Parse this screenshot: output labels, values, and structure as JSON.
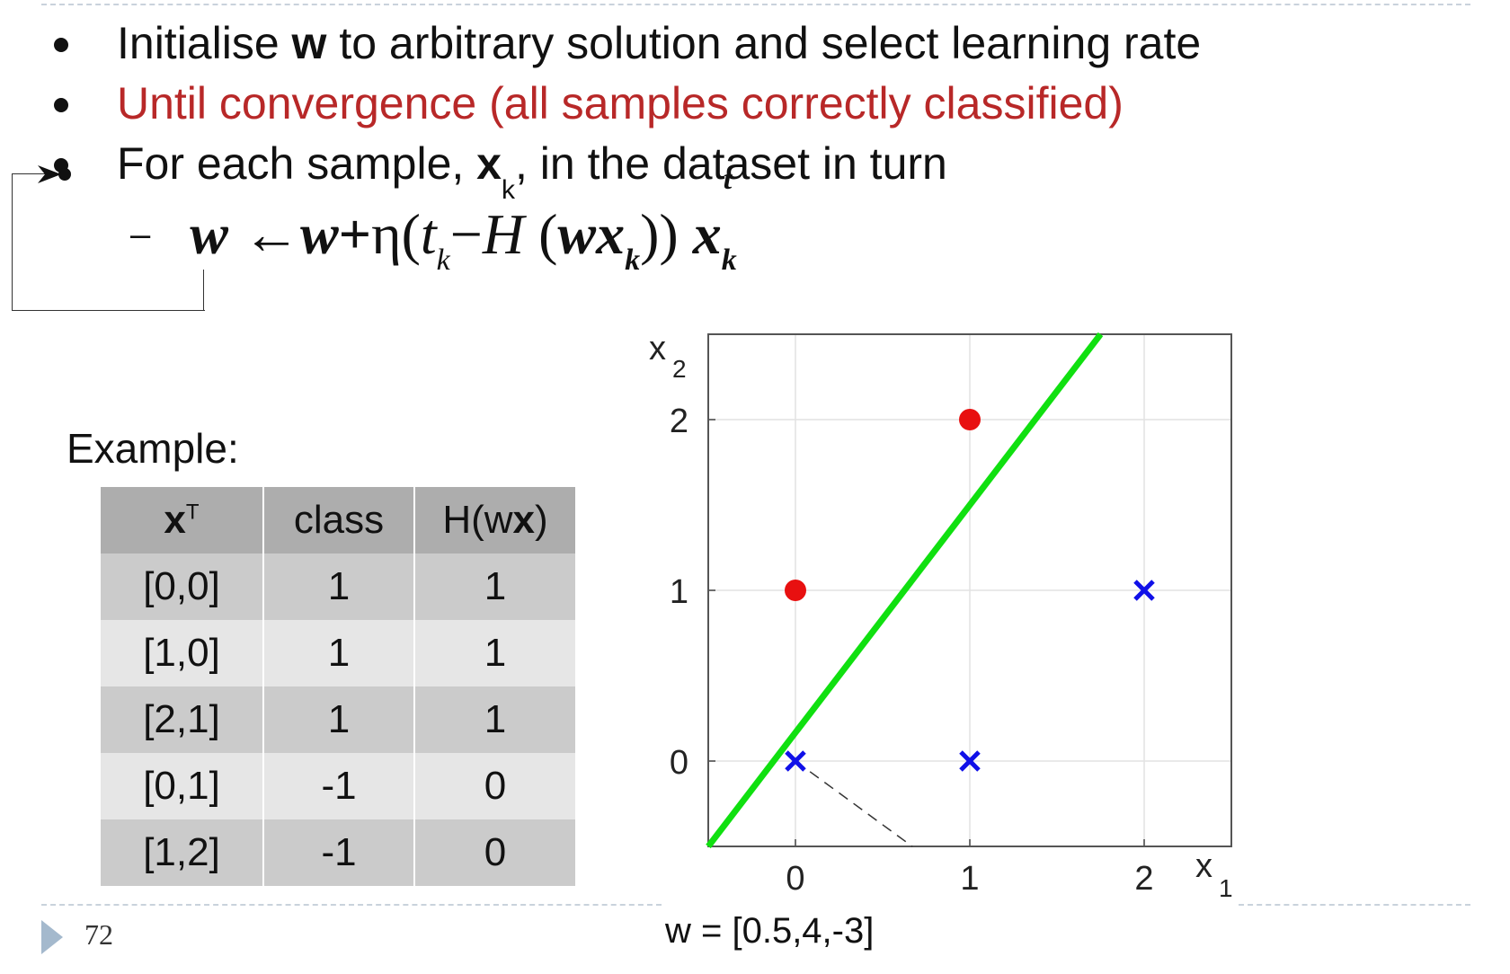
{
  "bullets": {
    "b1_pre": "Initialise ",
    "b1_bold": "w",
    "b1_post": " to arbitrary solution and select learning rate",
    "b2": "Until convergence (all samples correctly classified)",
    "b3_pre": "For each sample, ",
    "b3_bold": "x",
    "b3_sub": "k",
    "b3_post": ", in the dataset in turn"
  },
  "formula": {
    "dash": "–",
    "w1": "w",
    "arrow": "←",
    "w2": "w",
    "plus": "+",
    "eta": "η(",
    "t": "t",
    "k1": "k",
    "minus": "−",
    "H": "H",
    "open": "(",
    "wx": "wx",
    "k2": "k",
    "close": "))",
    "x": "x",
    "k3": "k",
    "tsup": "t"
  },
  "example": {
    "label": "Example:",
    "headers": {
      "x": "x",
      "x_sup": "T",
      "class": "class",
      "h_pre": "H(w",
      "h_bold": "x",
      "h_post": ")"
    },
    "rows": [
      {
        "x": "[0,0]",
        "class": "1",
        "h": "1"
      },
      {
        "x": "[1,0]",
        "class": "1",
        "h": "1"
      },
      {
        "x": "[2,1]",
        "class": "1",
        "h": "1"
      },
      {
        "x": "[0,1]",
        "class": "-1",
        "h": "0"
      },
      {
        "x": "[1,2]",
        "class": "-1",
        "h": "0"
      }
    ]
  },
  "chart_data": {
    "type": "scatter",
    "xlabel": "x",
    "xlabel_sub": "1",
    "ylabel": "x",
    "ylabel_sub": "2",
    "xlim": [
      -0.5,
      2.5
    ],
    "ylim": [
      -0.5,
      2.5
    ],
    "xticks": [
      "0",
      "1",
      "2"
    ],
    "yticks": [
      "0",
      "1",
      "2"
    ],
    "grid": true,
    "series": [
      {
        "marker": "circle",
        "color": "#e81010",
        "points": [
          [
            0,
            1
          ],
          [
            1,
            2
          ]
        ]
      },
      {
        "marker": "x",
        "color": "#1010e8",
        "points": [
          [
            0,
            0
          ],
          [
            1,
            0
          ],
          [
            2,
            1
          ]
        ]
      }
    ],
    "decision_line": {
      "color": "#10e010",
      "points": [
        [
          -0.5,
          -0.5
        ],
        [
          1.75,
          2.5
        ]
      ]
    },
    "normal_dashed": {
      "color": "#333333",
      "points": [
        [
          0,
          0
        ],
        [
          0.67,
          -0.5
        ]
      ]
    },
    "weight_label": "w = [0.5,4,-3]"
  },
  "page": {
    "number": "72"
  }
}
